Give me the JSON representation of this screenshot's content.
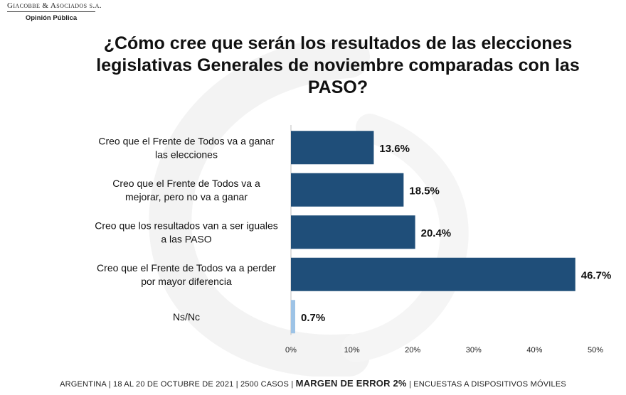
{
  "logo": {
    "name": "Giacobbe & Asociados s.a.",
    "subtitle": "Opinión Pública"
  },
  "chart_data": {
    "type": "bar",
    "orientation": "horizontal",
    "title": "¿Cómo cree que serán los resultados de las elecciones legislativas Generales de noviembre comparadas con las PASO?",
    "categories": [
      [
        "Creo que el Frente de Todos va a ganar",
        "las elecciones"
      ],
      [
        "Creo que el Frente de Todos va a",
        "mejorar, pero no va a ganar"
      ],
      [
        "Creo que los resultados van a ser iguales",
        "a las PASO"
      ],
      [
        "Creo que el Frente de Todos va a perder",
        "por mayor diferencia"
      ],
      [
        "Ns/Nc"
      ]
    ],
    "values": [
      13.6,
      18.5,
      20.4,
      46.7,
      0.7
    ],
    "value_labels": [
      "13.6%",
      "18.5%",
      "20.4%",
      "46.7%",
      "0.7%"
    ],
    "bar_colors": [
      "#1f4e79",
      "#1f4e79",
      "#1f4e79",
      "#1f4e79",
      "#9dc3e6"
    ],
    "xlim": [
      0,
      50
    ],
    "xticks": [
      "0%",
      "10%",
      "20%",
      "30%",
      "40%",
      "50%"
    ],
    "xlabel": "",
    "ylabel": "",
    "grid": false,
    "legend": "none"
  },
  "footer": {
    "part1": "ARGENTINA | 18 AL 20 DE OCTUBRE DE 2021 | 2500 CASOS |",
    "part2": "MARGEN DE ERROR 2%",
    "part3": "| ENCUESTAS A DISPOSITIVOS MÓVILES"
  }
}
